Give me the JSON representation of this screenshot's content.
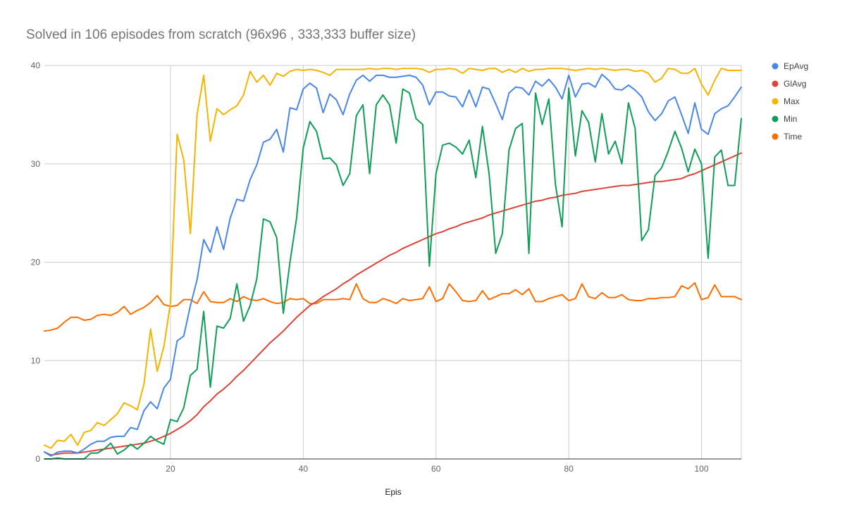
{
  "chart_data": {
    "type": "line",
    "title": "Solved in 106 episodes from scratch (96x96 ,  333,333 buffer  size)",
    "xlabel": "Epis",
    "ylabel": "",
    "xlim": [
      1,
      106
    ],
    "ylim": [
      0,
      40
    ],
    "x_ticks": [
      20,
      40,
      60,
      80,
      100
    ],
    "y_ticks": [
      0,
      10,
      20,
      30,
      40
    ],
    "grid": true,
    "legend_position": "right",
    "x": [
      1,
      2,
      3,
      4,
      5,
      6,
      7,
      8,
      9,
      10,
      11,
      12,
      13,
      14,
      15,
      16,
      17,
      18,
      19,
      20,
      21,
      22,
      23,
      24,
      25,
      26,
      27,
      28,
      29,
      30,
      31,
      32,
      33,
      34,
      35,
      36,
      37,
      38,
      39,
      40,
      41,
      42,
      43,
      44,
      45,
      46,
      47,
      48,
      49,
      50,
      51,
      52,
      53,
      54,
      55,
      56,
      57,
      58,
      59,
      60,
      61,
      62,
      63,
      64,
      65,
      66,
      67,
      68,
      69,
      70,
      71,
      72,
      73,
      74,
      75,
      76,
      77,
      78,
      79,
      80,
      81,
      82,
      83,
      84,
      85,
      86,
      87,
      88,
      89,
      90,
      91,
      92,
      93,
      94,
      95,
      96,
      97,
      98,
      99,
      100,
      101,
      102,
      103,
      104,
      105,
      106
    ],
    "series": [
      {
        "name": "EpAvg",
        "color": "#4a86e8",
        "values": [
          0.7,
          0.3,
          0.7,
          0.8,
          0.8,
          0.6,
          1.0,
          1.5,
          1.8,
          1.8,
          2.2,
          2.3,
          2.3,
          3.2,
          3.0,
          4.9,
          5.8,
          5.1,
          7.2,
          8.1,
          12.0,
          12.5,
          15.6,
          18.2,
          22.3,
          21.0,
          23.6,
          21.3,
          24.5,
          26.4,
          26.2,
          28.4,
          29.9,
          32.2,
          32.5,
          33.5,
          31.2,
          35.7,
          35.5,
          37.6,
          38.2,
          37.7,
          35.2,
          37.1,
          36.5,
          35.0,
          37.1,
          38.5,
          39.0,
          38.4,
          39.0,
          39.0,
          38.8,
          38.8,
          38.9,
          39.0,
          38.8,
          38.0,
          36.0,
          37.3,
          37.3,
          36.9,
          36.8,
          35.8,
          37.5,
          35.8,
          37.8,
          37.6,
          36.1,
          34.5,
          37.2,
          37.8,
          37.7,
          37.0,
          38.4,
          37.9,
          38.6,
          37.8,
          36.6,
          39.0,
          36.8,
          38.1,
          38.2,
          37.8,
          39.1,
          38.5,
          37.6,
          37.5,
          38.0,
          37.5,
          36.8,
          35.3,
          34.4,
          35.1,
          36.4,
          36.8,
          35.0,
          33.1,
          36.2,
          33.5,
          33.0,
          35.1,
          35.6,
          35.9,
          36.8,
          37.8
        ]
      },
      {
        "name": "GlAvg",
        "color": "#db4437",
        "values": [
          0.7,
          0.4,
          0.5,
          0.6,
          0.6,
          0.6,
          0.7,
          0.8,
          0.9,
          1.0,
          1.1,
          1.2,
          1.3,
          1.4,
          1.5,
          1.6,
          1.8,
          2.0,
          2.3,
          2.6,
          3.0,
          3.4,
          3.9,
          4.5,
          5.3,
          5.9,
          6.6,
          7.1,
          7.7,
          8.4,
          9.0,
          9.7,
          10.4,
          11.1,
          11.8,
          12.4,
          13.0,
          13.7,
          14.4,
          15.0,
          15.6,
          16.0,
          16.5,
          16.9,
          17.3,
          17.8,
          18.2,
          18.7,
          19.1,
          19.5,
          19.9,
          20.3,
          20.7,
          21.0,
          21.4,
          21.7,
          22.0,
          22.3,
          22.6,
          22.9,
          23.1,
          23.4,
          23.6,
          23.9,
          24.1,
          24.3,
          24.5,
          24.8,
          25.0,
          25.2,
          25.4,
          25.6,
          25.8,
          26.0,
          26.2,
          26.3,
          26.5,
          26.6,
          26.8,
          26.9,
          27.0,
          27.2,
          27.3,
          27.4,
          27.5,
          27.6,
          27.7,
          27.8,
          27.8,
          27.9,
          28.0,
          28.1,
          28.2,
          28.2,
          28.3,
          28.4,
          28.5,
          28.8,
          29.0,
          29.3,
          29.6,
          29.9,
          30.2,
          30.5,
          30.8,
          31.1
        ]
      },
      {
        "name": "Max",
        "color": "#f4b400",
        "values": [
          1.4,
          1.1,
          1.9,
          1.8,
          2.5,
          1.4,
          2.7,
          2.9,
          3.7,
          3.4,
          4.0,
          4.6,
          5.7,
          5.4,
          5.0,
          7.6,
          13.2,
          8.9,
          11.4,
          15.9,
          33.0,
          30.4,
          22.9,
          35.0,
          39.0,
          32.3,
          35.6,
          35.0,
          35.5,
          35.9,
          37.0,
          39.4,
          38.3,
          39.0,
          38.0,
          39.2,
          38.9,
          39.4,
          39.6,
          39.5,
          39.6,
          39.5,
          39.3,
          39.0,
          39.6,
          39.6,
          39.6,
          39.6,
          39.6,
          39.7,
          39.6,
          39.7,
          39.7,
          39.6,
          39.7,
          39.7,
          39.7,
          39.6,
          39.3,
          39.6,
          39.6,
          39.7,
          39.6,
          39.2,
          39.7,
          39.6,
          39.5,
          39.7,
          39.7,
          39.3,
          39.6,
          39.3,
          39.7,
          39.4,
          39.6,
          39.6,
          39.7,
          39.7,
          39.7,
          39.6,
          39.5,
          39.6,
          39.7,
          39.6,
          39.7,
          39.6,
          39.5,
          39.6,
          39.6,
          39.4,
          39.5,
          39.2,
          38.3,
          38.7,
          39.7,
          39.6,
          39.2,
          39.2,
          39.7,
          38.1,
          37.0,
          38.5,
          39.7,
          39.5,
          39.5,
          39.5
        ]
      },
      {
        "name": "Min",
        "color": "#0f9d58",
        "values": [
          0.0,
          0.0,
          0.1,
          0.0,
          0.0,
          0.0,
          0.0,
          0.6,
          0.6,
          1.0,
          1.6,
          0.5,
          0.9,
          1.5,
          1.0,
          1.6,
          2.3,
          1.8,
          1.5,
          4.0,
          3.8,
          5.2,
          8.5,
          9.1,
          15.0,
          7.3,
          13.5,
          13.3,
          14.3,
          17.8,
          14.0,
          15.6,
          18.3,
          24.4,
          24.1,
          22.5,
          14.8,
          20.0,
          24.5,
          31.6,
          34.3,
          33.3,
          30.5,
          30.6,
          29.9,
          27.8,
          29.0,
          34.9,
          36.0,
          29.0,
          36.0,
          37.0,
          36.0,
          32.1,
          37.6,
          37.2,
          34.6,
          34.0,
          19.6,
          29.0,
          31.9,
          32.1,
          31.7,
          31.0,
          32.4,
          28.6,
          33.8,
          29.0,
          20.9,
          22.9,
          31.4,
          33.6,
          34.1,
          20.9,
          37.2,
          34.0,
          36.6,
          27.9,
          23.6,
          37.7,
          30.8,
          35.4,
          34.2,
          30.2,
          35.1,
          31.0,
          32.3,
          30.0,
          36.2,
          33.6,
          22.2,
          23.3,
          28.8,
          29.6,
          31.3,
          33.3,
          31.6,
          29.2,
          31.5,
          30.0,
          20.4,
          30.7,
          31.4,
          27.8,
          27.8,
          34.6
        ]
      },
      {
        "name": "Time",
        "color": "#ff6d00",
        "values": [
          13.0,
          13.1,
          13.3,
          13.9,
          14.4,
          14.4,
          14.1,
          14.2,
          14.6,
          14.7,
          14.6,
          14.9,
          15.5,
          14.7,
          15.1,
          15.4,
          15.9,
          16.6,
          15.7,
          15.5,
          15.6,
          16.2,
          16.2,
          15.8,
          17.0,
          16.0,
          15.9,
          15.9,
          16.3,
          16.0,
          16.5,
          16.2,
          16.1,
          16.3,
          16.0,
          15.8,
          15.9,
          16.3,
          16.2,
          16.3,
          15.8,
          15.8,
          16.2,
          16.2,
          16.2,
          16.3,
          16.2,
          17.8,
          16.3,
          15.9,
          15.9,
          16.3,
          16.1,
          15.8,
          16.3,
          16.1,
          16.2,
          16.3,
          17.5,
          16.0,
          16.3,
          17.8,
          17.0,
          16.1,
          16.0,
          16.1,
          17.1,
          16.2,
          16.5,
          16.8,
          16.8,
          17.2,
          16.7,
          17.3,
          16.0,
          16.0,
          16.3,
          16.5,
          16.7,
          16.1,
          16.3,
          17.8,
          16.5,
          16.3,
          16.9,
          16.4,
          16.4,
          16.7,
          16.2,
          16.1,
          16.1,
          16.3,
          16.3,
          16.4,
          16.4,
          16.5,
          17.6,
          17.3,
          17.9,
          16.2,
          16.4,
          17.7,
          16.5,
          16.5,
          16.5,
          16.2
        ]
      }
    ]
  }
}
